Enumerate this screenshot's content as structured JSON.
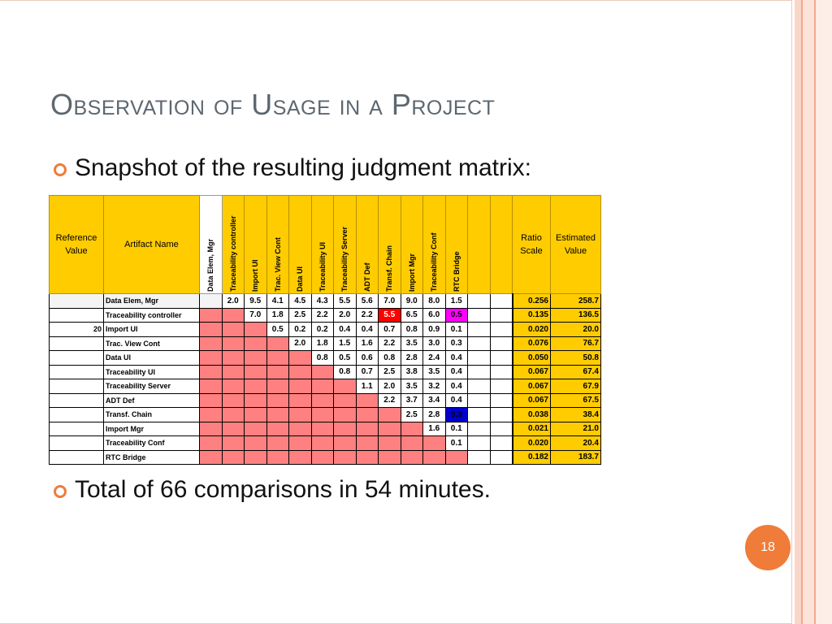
{
  "title": "Observation of Usage in a Project",
  "bullets": [
    "Snapshot of the resulting judgment matrix:",
    "Total of 66 comparisons in 54 minutes."
  ],
  "matrix": {
    "header_left": {
      "reference_value": "Reference Value",
      "artifact_name": "Artifact Name"
    },
    "columns": [
      "Data Elem, Mgr",
      "Traceability controller",
      "Import UI",
      "Trac. View Cont",
      "Data UI",
      "Traceability UI",
      "Traceability Server",
      "ADT Def",
      "Transf. Chain",
      "Import Mgr",
      "Traceability Conf",
      "RTC Bridge"
    ],
    "header_right": {
      "ratio_scale": "Ratio Scale",
      "estimated_value": "Estimated Value"
    },
    "rows": [
      {
        "ref": "",
        "name": "Data Elem, Mgr",
        "values": [
          "2.0",
          "9.5",
          "4.1",
          "4.5",
          "4.3",
          "5.5",
          "5.6",
          "7.0",
          "9.0",
          "8.0",
          "1.5"
        ],
        "ratio": "0.256",
        "est": "258.7"
      },
      {
        "ref": "",
        "name": "Traceability controller",
        "values": [
          "7.0",
          "1.8",
          "2.5",
          "2.2",
          "2.0",
          "2.2",
          "5.5",
          "6.5",
          "6.0",
          "0.5"
        ],
        "ratio": "0.135",
        "est": "136.5"
      },
      {
        "ref": "20",
        "name": "Import UI",
        "values": [
          "0.5",
          "0.2",
          "0.2",
          "0.4",
          "0.4",
          "0.7",
          "0.8",
          "0.9",
          "0.1"
        ],
        "ratio": "0.020",
        "est": "20.0"
      },
      {
        "ref": "",
        "name": "Trac. View Cont",
        "values": [
          "2.0",
          "1.8",
          "1.5",
          "1.6",
          "2.2",
          "3.5",
          "3.0",
          "0.3"
        ],
        "ratio": "0.076",
        "est": "76.7"
      },
      {
        "ref": "",
        "name": "Data UI",
        "values": [
          "0.8",
          "0.5",
          "0.6",
          "0.8",
          "2.8",
          "2.4",
          "0.4"
        ],
        "ratio": "0.050",
        "est": "50.8"
      },
      {
        "ref": "",
        "name": "Traceability UI",
        "values": [
          "0.8",
          "0.7",
          "2.5",
          "3.8",
          "3.5",
          "0.4"
        ],
        "ratio": "0.067",
        "est": "67.4"
      },
      {
        "ref": "",
        "name": "Traceability Server",
        "values": [
          "1.1",
          "2.0",
          "3.5",
          "3.2",
          "0.4"
        ],
        "ratio": "0.067",
        "est": "67.9"
      },
      {
        "ref": "",
        "name": "ADT Def",
        "values": [
          "2.2",
          "3.7",
          "3.4",
          "0.4"
        ],
        "ratio": "0.067",
        "est": "67.5"
      },
      {
        "ref": "",
        "name": "Transf. Chain",
        "values": [
          "2.5",
          "2.8",
          "0.3"
        ],
        "ratio": "0.038",
        "est": "38.4"
      },
      {
        "ref": "",
        "name": "Import Mgr",
        "values": [
          "1.6",
          "0.1"
        ],
        "ratio": "0.021",
        "est": "21.0"
      },
      {
        "ref": "",
        "name": "Traceability Conf",
        "values": [
          "0.1"
        ],
        "ratio": "0.020",
        "est": "20.4"
      },
      {
        "ref": "",
        "name": "RTC Bridge",
        "values": [],
        "ratio": "0.182",
        "est": "183.7"
      }
    ],
    "highlights": [
      {
        "row": 1,
        "col": 8,
        "color": "#ff0000"
      },
      {
        "row": 1,
        "col": 11,
        "color": "#ff00ff"
      },
      {
        "row": 8,
        "col": 11,
        "color": "#0000cc"
      }
    ]
  },
  "colors": {
    "accent": "#f07c3a",
    "header_fill": "#ffcc00",
    "lower_triangle": "#ff8080",
    "title": "#5d6770"
  },
  "page_number": "18"
}
